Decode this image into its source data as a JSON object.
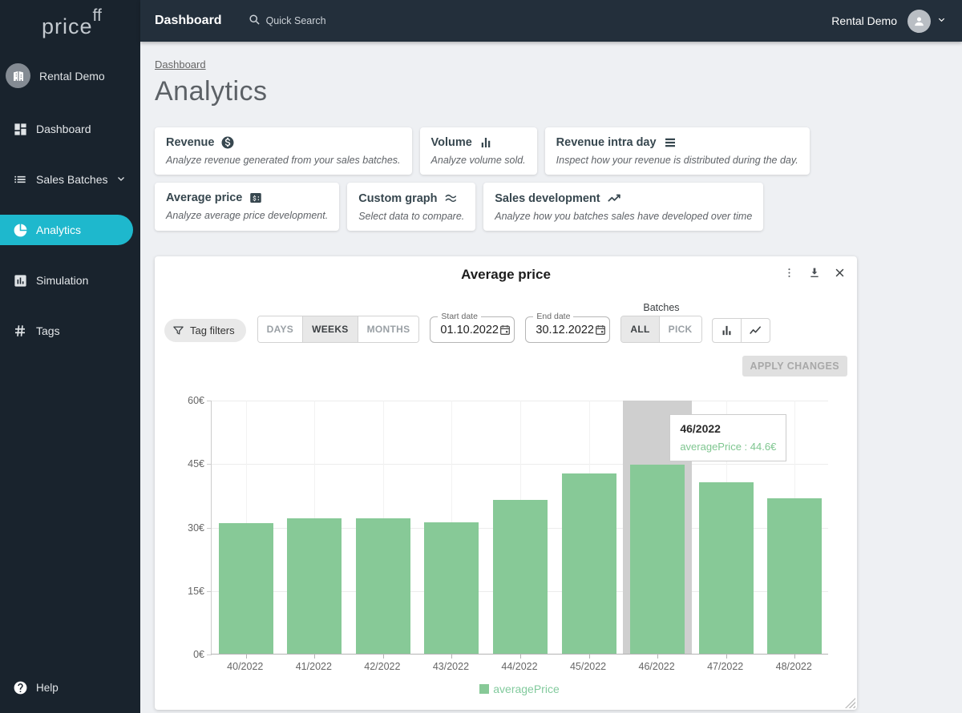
{
  "topbar": {
    "title": "Dashboard",
    "search_placeholder": "Quick Search",
    "user": "Rental Demo"
  },
  "sidebar": {
    "logo_main": "price",
    "logo_sup": "ff",
    "org": "Rental Demo",
    "items": [
      {
        "label": "Dashboard"
      },
      {
        "label": "Sales Batches"
      },
      {
        "label": "Analytics"
      },
      {
        "label": "Simulation"
      },
      {
        "label": "Tags"
      }
    ],
    "help": "Help"
  },
  "breadcrumb": "Dashboard",
  "page_title": "Analytics",
  "cards": [
    {
      "title": "Revenue",
      "icon": "dollar-circle-icon",
      "desc": "Analyze revenue generated from your sales batches."
    },
    {
      "title": "Volume",
      "icon": "bar-chart-icon",
      "desc": "Analyze volume sold."
    },
    {
      "title": "Revenue intra day",
      "icon": "rows-icon",
      "desc": "Inspect how your revenue is distributed during the day."
    },
    {
      "title": "Average price",
      "icon": "price-tag-icon",
      "desc": "Analyze average price development."
    },
    {
      "title": "Custom graph",
      "icon": "waves-icon",
      "desc": "Select data to compare."
    },
    {
      "title": "Sales development",
      "icon": "trend-icon",
      "desc": "Analyze how you batches sales have developed over time"
    }
  ],
  "panel": {
    "title": "Average price",
    "controls": {
      "tag_filters": "Tag filters",
      "granularity": [
        "DAYS",
        "WEEKS",
        "MONTHS"
      ],
      "granularity_selected": "WEEKS",
      "start_date": {
        "label": "Start date",
        "value": "01.10.2022"
      },
      "end_date": {
        "label": "End date",
        "value": "30.12.2022"
      },
      "batches_label": "Batches",
      "batches_options": [
        "ALL",
        "PICK"
      ],
      "batches_selected": "ALL",
      "apply": "APPLY CHANGES"
    },
    "tooltip": {
      "title": "46/2022",
      "text": "averagePrice : 44.6€"
    },
    "legend": "averagePrice",
    "chart_data": {
      "type": "bar",
      "title": "Average price",
      "categories": [
        "40/2022",
        "41/2022",
        "42/2022",
        "43/2022",
        "44/2022",
        "45/2022",
        "46/2022",
        "47/2022",
        "48/2022"
      ],
      "series": [
        {
          "name": "averagePrice",
          "values": [
            30.8,
            32.0,
            31.9,
            31.0,
            36.3,
            42.5,
            44.6,
            40.5,
            36.7
          ]
        }
      ],
      "y_ticks": [
        "0€",
        "15€",
        "30€",
        "45€",
        "60€"
      ],
      "y_tick_values": [
        0,
        15,
        30,
        45,
        60
      ],
      "ylim": [
        0,
        60
      ],
      "bar_color": "#87c997",
      "highlight_index": 6,
      "grid": true,
      "legend_position": "bottom"
    }
  },
  "colors": {
    "accent": "#1eb8cd",
    "bar_green": "#87c997",
    "legend_green": "#82ca9d",
    "sidebar_bg": "#19232d",
    "topbar_bg": "#232f3b",
    "hover_band": "#cfcfcf"
  }
}
